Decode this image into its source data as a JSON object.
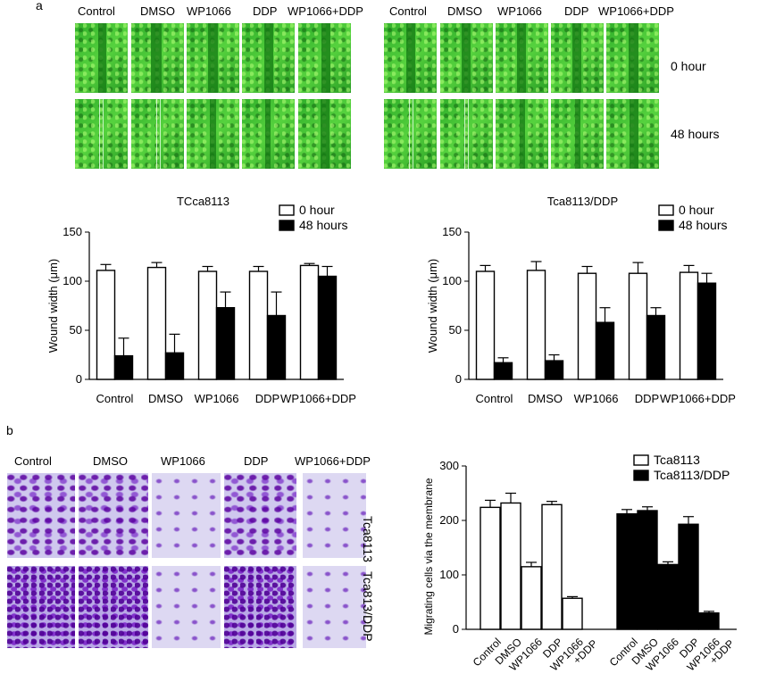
{
  "panel_a": {
    "letter": "a",
    "groups": [
      "Control",
      "DMSO",
      "WP1066",
      "DDP",
      "WP1066+DDP"
    ],
    "time_labels": [
      "0 hour",
      "48 hours"
    ]
  },
  "panel_b": {
    "letter": "b",
    "groups": [
      "Control",
      "DMSO",
      "WP1066",
      "DDP",
      "WP1066+DDP"
    ],
    "row_labels": [
      "Tca8113",
      "Tca813/DDP"
    ]
  },
  "colors": {
    "white_bar": "#ffffff",
    "black_bar": "#000000",
    "green_image": "#3fbf30",
    "purple_image": "#7b3fd0"
  },
  "chart_data": [
    {
      "type": "bar",
      "title": "TCca8113",
      "ylabel": "Wound width (μm)",
      "categories": [
        "Control",
        "DMSO",
        "WP1066",
        "DDP",
        "WP1066+DDP"
      ],
      "ylim": [
        0,
        150
      ],
      "yticks": [
        0,
        50,
        100,
        150
      ],
      "legend": "top-right",
      "series": [
        {
          "name": "0 hour",
          "values": [
            111,
            114,
            110,
            110,
            116
          ],
          "errors": [
            6,
            5,
            5,
            5,
            2
          ]
        },
        {
          "name": "48 hours",
          "values": [
            24,
            27,
            73,
            65,
            105
          ],
          "errors": [
            18,
            19,
            16,
            24,
            10
          ]
        }
      ]
    },
    {
      "type": "bar",
      "title": "Tca8113/DDP",
      "ylabel": "Wound width (μm)",
      "categories": [
        "Control",
        "DMSO",
        "WP1066",
        "DDP",
        "WP1066+DDP"
      ],
      "ylim": [
        0,
        150
      ],
      "yticks": [
        0,
        50,
        100,
        150
      ],
      "legend": "top-right",
      "series": [
        {
          "name": "0 hour",
          "values": [
            110,
            111,
            108,
            108,
            109
          ],
          "errors": [
            6,
            9,
            7,
            11,
            7
          ]
        },
        {
          "name": "48 hours",
          "values": [
            17,
            19,
            58,
            65,
            98
          ],
          "errors": [
            5,
            6,
            15,
            8,
            10
          ]
        }
      ]
    },
    {
      "type": "bar",
      "title": "",
      "ylabel": "Migrating cells via the membrane",
      "categories": [
        "Control",
        "DMSO",
        "WP1066",
        "DDP",
        "WP1066\n+DDP"
      ],
      "ylim": [
        0,
        300
      ],
      "yticks": [
        0,
        100,
        200,
        300
      ],
      "legend": "top-right",
      "series": [
        {
          "name": "Tca8113",
          "values": [
            224,
            232,
            115,
            229,
            57
          ],
          "errors": [
            13,
            18,
            8,
            6,
            3
          ]
        },
        {
          "name": "Tca8113/DDP",
          "values": [
            212,
            218,
            119,
            193,
            30
          ],
          "errors": [
            8,
            7,
            5,
            14,
            3
          ]
        }
      ]
    }
  ]
}
